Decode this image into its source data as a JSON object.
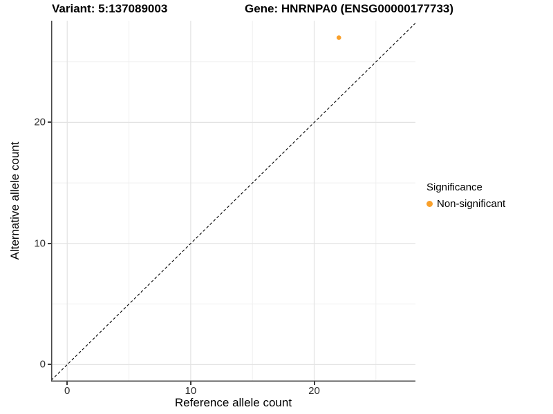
{
  "titles": {
    "variant": "Variant: 5:137089003",
    "gene": "Gene: HNRNPA0 (ENSG00000177733)"
  },
  "legend": {
    "title": "Significance",
    "items": [
      {
        "label": "Non-significant",
        "color": "#F9A02B"
      }
    ]
  },
  "chart_data": {
    "type": "scatter",
    "title": "Variant: 5:137089003 — Gene: HNRNPA0 (ENSG00000177733)",
    "xlabel": "Reference allele count",
    "ylabel": "Alternative allele count",
    "xlim": [
      -1.3,
      28.2
    ],
    "ylim": [
      -1.4,
      28.4
    ],
    "xticks": [
      0,
      10,
      20
    ],
    "yticks": [
      0,
      10,
      20
    ],
    "minor_grid_x": [
      5,
      15,
      25
    ],
    "minor_grid_y": [
      5,
      15,
      25
    ],
    "grid": "on",
    "legend_position": "right",
    "series": [
      {
        "name": "Non-significant",
        "color": "#F9A02B",
        "points": [
          {
            "x": 22,
            "y": 27
          }
        ]
      }
    ],
    "identity_line": {
      "slope": 1,
      "intercept": 0,
      "style": "dashed",
      "color": "#000000"
    }
  },
  "style": {
    "point_color": "#F9A02B",
    "grid_major_color": "#e3e3e3",
    "grid_minor_color": "#efefef",
    "axis_line_color": "#474747"
  }
}
